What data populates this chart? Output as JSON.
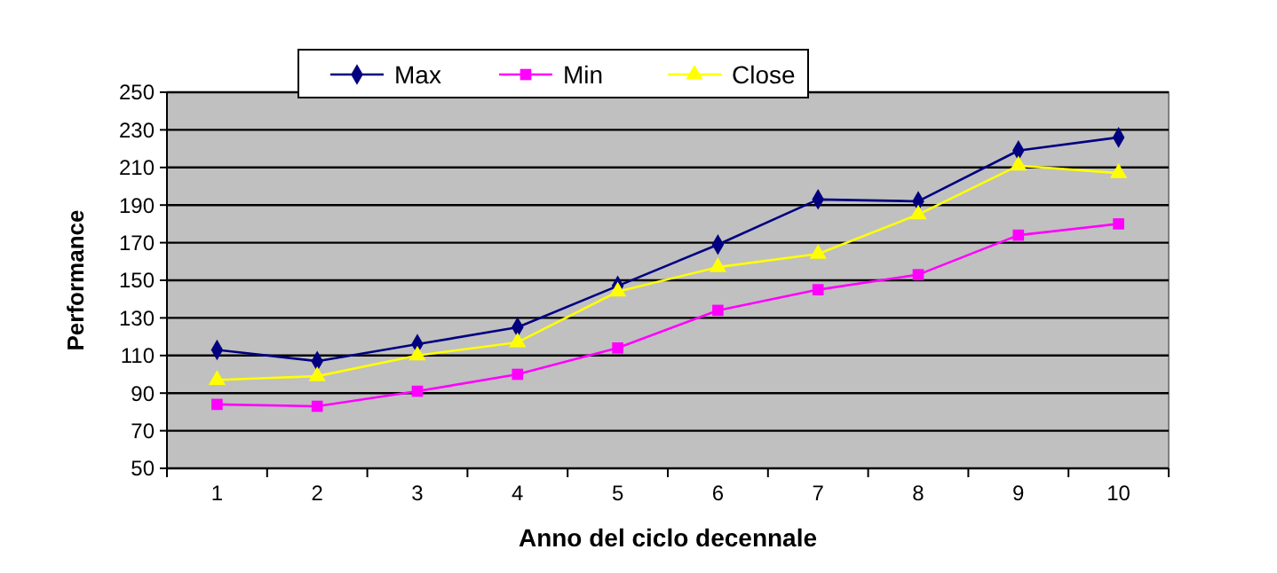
{
  "chart_data": {
    "type": "line",
    "xlabel": "Anno del ciclo decennale",
    "ylabel": "Performance",
    "categories": [
      "1",
      "2",
      "3",
      "4",
      "5",
      "6",
      "7",
      "8",
      "9",
      "10"
    ],
    "series": [
      {
        "name": "Max",
        "color": "#000080",
        "marker": "diamond",
        "values": [
          113,
          107,
          116,
          125,
          147,
          169,
          193,
          192,
          219,
          226
        ]
      },
      {
        "name": "Min",
        "color": "#ff00ff",
        "marker": "square",
        "values": [
          84,
          83,
          91,
          100,
          114,
          134,
          145,
          153,
          174,
          180
        ]
      },
      {
        "name": "Close",
        "color": "#ffff00",
        "marker": "triangle",
        "values": [
          97,
          99,
          110,
          117,
          144,
          157,
          164,
          185,
          211,
          207
        ]
      }
    ],
    "ylim": [
      50,
      250
    ],
    "yticks": [
      50,
      70,
      90,
      110,
      130,
      150,
      170,
      190,
      210,
      230,
      250
    ],
    "grid": "y",
    "legend": "top",
    "line_style": "solid"
  }
}
